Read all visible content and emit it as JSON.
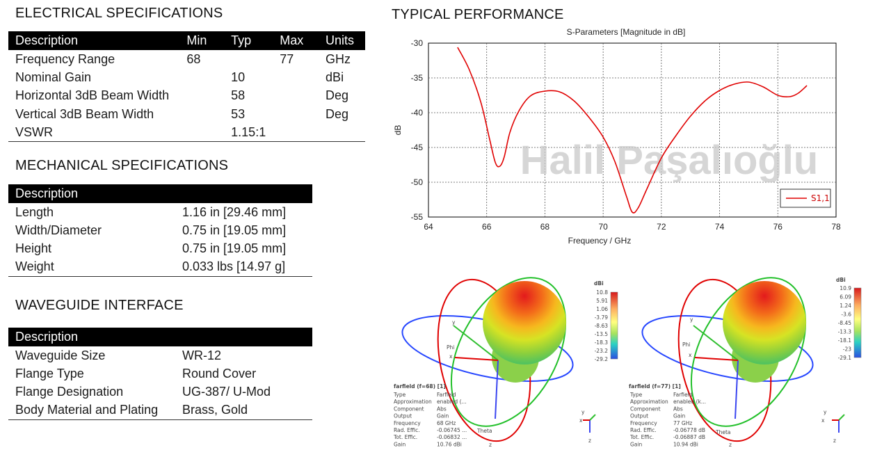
{
  "electrical": {
    "title": "ELECTRICAL SPECIFICATIONS",
    "headers": [
      "Description",
      "Min",
      "Typ",
      "Max",
      "Units"
    ],
    "rows": [
      [
        "Frequency Range",
        "68",
        "",
        "77",
        "GHz"
      ],
      [
        "Nominal Gain",
        "",
        "10",
        "",
        "dBi"
      ],
      [
        "Horizontal 3dB Beam Width",
        "",
        "58",
        "",
        "Deg"
      ],
      [
        "Vertical 3dB Beam Width",
        "",
        "53",
        "",
        "Deg"
      ],
      [
        "VSWR",
        "",
        "1.15:1",
        "",
        ""
      ]
    ]
  },
  "mechanical": {
    "title": "MECHANICAL SPECIFICATIONS",
    "header": "Description",
    "rows": [
      [
        "Length",
        "1.16 in [29.46 mm]"
      ],
      [
        "Width/Diameter",
        "0.75 in [19.05 mm]"
      ],
      [
        "Height",
        "0.75 in [19.05 mm]"
      ],
      [
        "Weight",
        "0.033 lbs [14.97 g]"
      ]
    ]
  },
  "waveguide": {
    "title": "WAVEGUIDE INTERFACE",
    "header": "Description",
    "rows": [
      [
        "Waveguide Size",
        "WR-12"
      ],
      [
        "Flange Type",
        "Round Cover"
      ],
      [
        "Flange Designation",
        "UG-387/ U-Mod"
      ],
      [
        "Body Material and Plating",
        "Brass, Gold"
      ]
    ]
  },
  "performance": {
    "title": "TYPICAL PERFORMANCE",
    "watermark": "Halil Paşalıoğlu"
  },
  "chart_data": {
    "type": "line",
    "title": "S-Parameters [Magnitude in dB]",
    "xlabel": "Frequency / GHz",
    "ylabel": "dB",
    "xlim": [
      64,
      78
    ],
    "ylim": [
      -55,
      -30
    ],
    "xticks": [
      64,
      66,
      68,
      70,
      72,
      74,
      76,
      78
    ],
    "yticks": [
      -30,
      -35,
      -40,
      -45,
      -50,
      -55
    ],
    "grid": true,
    "legend_position": "bottom-right",
    "series": [
      {
        "name": "S1,1",
        "color": "#e00000",
        "x": [
          65.0,
          65.4,
          65.8,
          66.1,
          66.3,
          66.45,
          66.6,
          66.8,
          67.1,
          67.5,
          68.0,
          68.5,
          69.0,
          69.5,
          70.0,
          70.4,
          70.8,
          71.0,
          71.2,
          71.5,
          72.0,
          72.5,
          73.0,
          73.5,
          74.0,
          74.5,
          75.0,
          75.5,
          76.0,
          76.4,
          76.7,
          77.0
        ],
        "y": [
          -30.6,
          -33.8,
          -38.5,
          -43.8,
          -47.2,
          -47.7,
          -46.4,
          -42.8,
          -39.8,
          -37.6,
          -36.9,
          -37.0,
          -38.3,
          -40.6,
          -43.5,
          -47.0,
          -52.0,
          -54.3,
          -53.7,
          -51.0,
          -46.5,
          -43.3,
          -40.5,
          -38.3,
          -36.8,
          -35.9,
          -35.6,
          -36.3,
          -37.5,
          -37.7,
          -37.2,
          -36.1
        ]
      }
    ]
  },
  "farfield_plots": [
    {
      "title": "farfield (f=68) [1]",
      "colorbar_label": "dBi",
      "colorbar_ticks": [
        "10.8",
        "5.91",
        "1.06",
        "-3.79",
        "-8.63",
        "-13.5",
        "-18.3",
        "-23.2",
        "-29.2"
      ],
      "props": [
        [
          "Type",
          "Farfield"
        ],
        [
          "Approximation",
          "enabled (..."
        ],
        [
          "Component",
          "Abs"
        ],
        [
          "Output",
          "Gain"
        ],
        [
          "Frequency",
          "68 GHz"
        ],
        [
          "Rad. Effic.",
          "-0.06745 ..."
        ],
        [
          "Tot. Effic.",
          "-0.06832 ..."
        ],
        [
          "Gain",
          "10.76 dBi"
        ]
      ],
      "axes": {
        "x": "x",
        "y": "y",
        "z": "z",
        "phi": "Phi",
        "theta": "Theta"
      }
    },
    {
      "title": "farfield (f=77) [1]",
      "colorbar_label": "dBi",
      "colorbar_ticks": [
        "10.9",
        "6.09",
        "1.24",
        "-3.6",
        "-8.45",
        "-13.3",
        "-18.1",
        "-23",
        "-29.1"
      ],
      "props": [
        [
          "Type",
          "Farfield"
        ],
        [
          "Approximation",
          "enabled (k..."
        ],
        [
          "Component",
          "Abs"
        ],
        [
          "Output",
          "Gain"
        ],
        [
          "Frequency",
          "77 GHz"
        ],
        [
          "Rad. Effic.",
          "-0.06778 dB"
        ],
        [
          "Tot. Effic.",
          "-0.06887 dB"
        ],
        [
          "Gain",
          "10.94 dBi"
        ]
      ],
      "axes": {
        "x": "x",
        "y": "y",
        "z": "z",
        "phi": "Phi",
        "theta": "Theta"
      }
    }
  ]
}
